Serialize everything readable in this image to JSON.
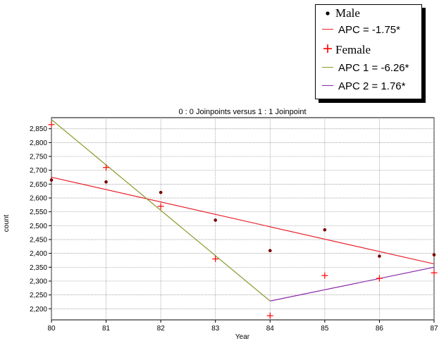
{
  "chart_data": {
    "type": "scatter",
    "title": "0 : 0 Joinpoints  versus  1 : 1 Joinpoint",
    "xlabel": "Year",
    "ylabel": "count",
    "x": [
      80,
      81,
      82,
      83,
      84,
      85,
      86,
      87
    ],
    "xlim": [
      80,
      87
    ],
    "ylim": [
      2160,
      2890
    ],
    "yticks": [
      2200,
      2250,
      2300,
      2350,
      2400,
      2450,
      2500,
      2550,
      2600,
      2650,
      2700,
      2750,
      2800,
      2850
    ],
    "ytick_labels": [
      "2,200",
      "2,250",
      "2,300",
      "2,350",
      "2,400",
      "2,450",
      "2,500",
      "2,550",
      "2,600",
      "2,650",
      "2,700",
      "2,750",
      "2,800",
      "2,850"
    ],
    "grid": true,
    "legend_position": "top-right",
    "colors": {
      "male_points": "#7a0000",
      "female_points": "#ff0000",
      "male_fit": "#e8212b",
      "female_fit_1": "#8a9a2a",
      "female_fit_2": "#8a2aa8"
    },
    "series": [
      {
        "name": "Male",
        "kind": "points",
        "marker": "dot",
        "x": [
          80,
          81,
          82,
          83,
          84,
          85,
          86,
          87
        ],
        "values": [
          2665,
          2658,
          2620,
          2520,
          2410,
          2485,
          2390,
          2395
        ]
      },
      {
        "name": "Female",
        "kind": "points",
        "marker": "plus",
        "x": [
          80,
          81,
          82,
          83,
          84,
          85,
          86,
          87
        ],
        "values": [
          2865,
          2710,
          2570,
          2380,
          2175,
          2320,
          2310,
          2330
        ]
      },
      {
        "name": "APC = -1.75*",
        "kind": "line",
        "x": [
          80,
          87
        ],
        "values": [
          2675,
          2362
        ]
      },
      {
        "name": "APC 1 = -6.26*",
        "kind": "line",
        "x": [
          80,
          84
        ],
        "values": [
          2883,
          2228
        ]
      },
      {
        "name": "APC 2 =  1.76*",
        "kind": "line",
        "x": [
          84,
          87
        ],
        "values": [
          2228,
          2350
        ]
      }
    ]
  },
  "legend": {
    "male": "Male",
    "male_apc": "APC = -1.75*",
    "female": "Female",
    "female_apc1": "APC 1 = -6.26*",
    "female_apc2": "APC 2 =  1.76*"
  }
}
